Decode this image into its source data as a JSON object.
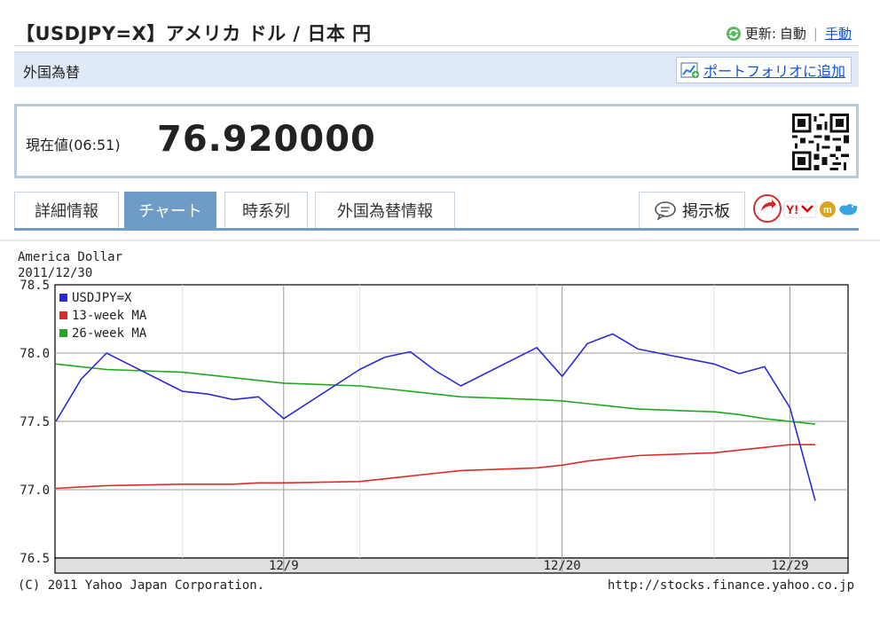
{
  "header": {
    "title": "【USDJPY=X】アメリカ ドル / 日本 円",
    "update_label": "更新:",
    "auto_label": "自動",
    "separator": "|",
    "manual_label": "手動"
  },
  "category": {
    "label": "外国為替",
    "portfolio_label": "ポートフォリオに追加"
  },
  "price": {
    "label": "現在値(06:51)",
    "value": "76.920000"
  },
  "tabs": [
    {
      "label": "詳細情報",
      "active": false
    },
    {
      "label": "チャート",
      "active": true
    },
    {
      "label": "時系列",
      "active": false
    },
    {
      "label": "外国為替情報",
      "active": false
    }
  ],
  "board_label": "掲示板",
  "chart_header": {
    "line1": "America Dollar",
    "line2": "2011/12/30"
  },
  "footer": {
    "copyright": "(C) 2011 Yahoo Japan Corporation.",
    "url": "http://stocks.finance.yahoo.co.jp"
  },
  "colors": {
    "usdjpy": "#2b2bd6",
    "ma13": "#e02a2a",
    "ma26": "#1faa1f",
    "tab_active": "#6f9bc7",
    "category_bg": "#dfeaf6"
  },
  "chart_data": {
    "type": "line",
    "x": [
      "2011/11/30",
      "2011/12/01",
      "2011/12/02",
      "2011/12/05",
      "2011/12/06",
      "2011/12/07",
      "2011/12/08",
      "2011/12/09",
      "2011/12/12",
      "2011/12/13",
      "2011/12/14",
      "2011/12/15",
      "2011/12/16",
      "2011/12/19",
      "2011/12/20",
      "2011/12/21",
      "2011/12/22",
      "2011/12/23",
      "2011/12/26",
      "2011/12/27",
      "2011/12/28",
      "2011/12/29",
      "2011/12/30"
    ],
    "series": [
      {
        "name": "USDJPY=X",
        "values": [
          77.5,
          77.81,
          78.0,
          77.72,
          77.7,
          77.66,
          77.68,
          77.52,
          77.88,
          77.97,
          78.01,
          77.87,
          77.76,
          78.04,
          77.83,
          78.07,
          78.14,
          78.03,
          77.92,
          77.85,
          77.9,
          77.6,
          76.92
        ]
      },
      {
        "name": "13-week MA",
        "values": [
          77.01,
          77.02,
          77.03,
          77.04,
          77.04,
          77.04,
          77.05,
          77.05,
          77.06,
          77.08,
          77.1,
          77.12,
          77.14,
          77.16,
          77.18,
          77.21,
          77.23,
          77.25,
          77.27,
          77.29,
          77.31,
          77.33,
          77.33
        ]
      },
      {
        "name": "26-week MA",
        "values": [
          77.92,
          77.9,
          77.88,
          77.86,
          77.84,
          77.82,
          77.8,
          77.78,
          77.76,
          77.74,
          77.72,
          77.7,
          77.68,
          77.66,
          77.65,
          77.63,
          77.61,
          77.59,
          77.57,
          77.55,
          77.52,
          77.5,
          77.48
        ]
      }
    ],
    "xticks": [
      "12/9",
      "12/20",
      "12/29"
    ],
    "yticks": [
      "76.5",
      "77.0",
      "77.5",
      "78.0",
      "78.5"
    ],
    "ylim": [
      76.5,
      78.5
    ],
    "grid": true,
    "legend": "top-left"
  }
}
